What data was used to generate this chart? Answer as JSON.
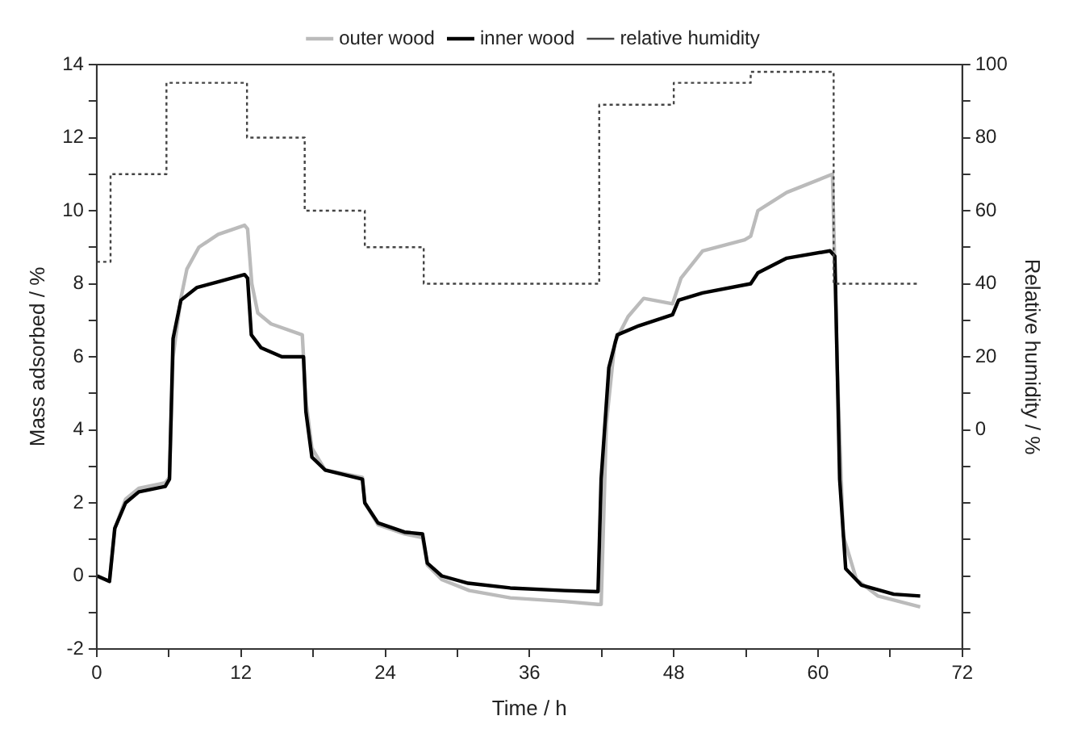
{
  "chart_data": {
    "type": "line",
    "xlabel": "Time / h",
    "ylabel": "Mass adsorbed / %",
    "y2label": "Relative humidity / %",
    "xlim": [
      0,
      72
    ],
    "xticks": [
      0,
      {
        "value": 6,
        "label": null
      },
      12,
      {
        "value": 18,
        "label": null
      },
      24,
      {
        "value": 30,
        "label": null
      },
      36,
      {
        "value": 42,
        "label": null
      },
      48,
      {
        "value": 54,
        "label": null
      },
      60,
      {
        "value": 66,
        "label": null
      },
      72
    ],
    "ylim": [
      -2,
      14
    ],
    "yticks": [
      -2,
      {
        "value": -1,
        "label": null
      },
      0,
      {
        "value": 1,
        "label": null
      },
      2,
      {
        "value": 3,
        "label": null
      },
      4,
      {
        "value": 5,
        "label": null
      },
      6,
      {
        "value": 7,
        "label": null
      },
      8,
      {
        "value": 9,
        "label": null
      },
      10,
      {
        "value": 11,
        "label": null
      },
      12,
      {
        "value": 13,
        "label": null
      },
      14
    ],
    "y2lim": [
      -60,
      100
    ],
    "y2ticks": [
      {
        "value": -60,
        "label": null
      },
      {
        "value": -50,
        "label": null
      },
      {
        "value": -40,
        "label": null
      },
      {
        "value": -30,
        "label": null
      },
      {
        "value": -20,
        "label": null
      },
      {
        "value": -10,
        "label": null
      },
      0,
      {
        "value": 10,
        "label": null
      },
      20,
      {
        "value": 30,
        "label": null
      },
      40,
      {
        "value": 50,
        "label": null
      },
      60,
      {
        "value": 70,
        "label": null
      },
      80,
      {
        "value": 90,
        "label": null
      },
      100
    ],
    "grid": false,
    "legend": "top",
    "marker": "none",
    "series": [
      {
        "name": "outer wood",
        "color": "#bbbbbb",
        "line_style": "solid",
        "x": [
          0,
          1.06,
          1.5,
          2.4,
          3.5,
          5.7,
          6.05,
          6.35,
          7.0,
          7.5,
          8.5,
          10.1,
          12.3,
          12.55,
          12.9,
          13.4,
          14.5,
          17.1,
          17.4,
          17.9,
          19,
          22.1,
          22.3,
          23.4,
          25.6,
          27.1,
          27.5,
          28.7,
          31,
          34.4,
          38.9,
          41.7,
          41.96,
          42.4,
          43.1,
          44.2,
          45.5,
          47.9,
          48.6,
          50.4,
          53.9,
          54.4,
          55.0,
          57.4,
          61.2,
          61.6,
          62.1,
          63.2,
          65.0,
          68.5
        ],
        "values": [
          0,
          -0.15,
          1.3,
          2.1,
          2.4,
          2.55,
          2.7,
          6.0,
          7.6,
          8.4,
          9.0,
          9.35,
          9.6,
          9.5,
          8.0,
          7.2,
          6.9,
          6.6,
          4.8,
          3.5,
          2.9,
          2.7,
          2.0,
          1.4,
          1.15,
          1.05,
          0.3,
          -0.1,
          -0.4,
          -0.6,
          -0.7,
          -0.78,
          -0.78,
          4.2,
          6.4,
          7.1,
          7.6,
          7.45,
          8.15,
          8.9,
          9.2,
          9.3,
          10.0,
          10.5,
          11.0,
          5.7,
          1.1,
          -0.1,
          -0.55,
          -0.85
        ]
      },
      {
        "name": "inner wood",
        "color": "#000000",
        "line_style": "solid",
        "x": [
          0.04,
          1.06,
          1.5,
          2.4,
          3.5,
          5.7,
          6.05,
          6.35,
          7.0,
          8.35,
          10.1,
          12.3,
          12.55,
          12.86,
          13.66,
          15.4,
          17.2,
          17.4,
          17.9,
          19.0,
          22.1,
          22.3,
          23.4,
          25.6,
          27.1,
          27.5,
          28.7,
          30.9,
          34.4,
          38.9,
          41.7,
          41.96,
          42.6,
          43.3,
          45.1,
          47.9,
          48.4,
          50.4,
          54.4,
          55.0,
          57.4,
          61.0,
          61.4,
          61.8,
          62.3,
          63.6,
          66.3,
          68.5
        ],
        "values": [
          0,
          -0.15,
          1.3,
          2.0,
          2.3,
          2.45,
          2.65,
          6.5,
          7.55,
          7.9,
          8.05,
          8.25,
          8.15,
          6.6,
          6.25,
          6.0,
          6.0,
          4.5,
          3.25,
          2.9,
          2.65,
          2.0,
          1.45,
          1.2,
          1.15,
          0.35,
          0,
          -0.2,
          -0.33,
          -0.4,
          -0.43,
          2.65,
          5.7,
          6.6,
          6.85,
          7.15,
          7.55,
          7.75,
          8.0,
          8.3,
          8.7,
          8.9,
          8.75,
          2.65,
          0.2,
          -0.25,
          -0.5,
          -0.55
        ]
      },
      {
        "name": "relative humidity",
        "type": "step",
        "axis": "y2",
        "color": "#444444",
        "line_style": "dotted",
        "x": [
          0,
          1.15,
          5.8,
          12.5,
          17.3,
          22.3,
          27.2,
          41.8,
          48,
          54.4,
          61.3,
          68.3
        ],
        "values": [
          46,
          70,
          95,
          80,
          60,
          50,
          40,
          89,
          95,
          98,
          40,
          40
        ]
      }
    ]
  }
}
